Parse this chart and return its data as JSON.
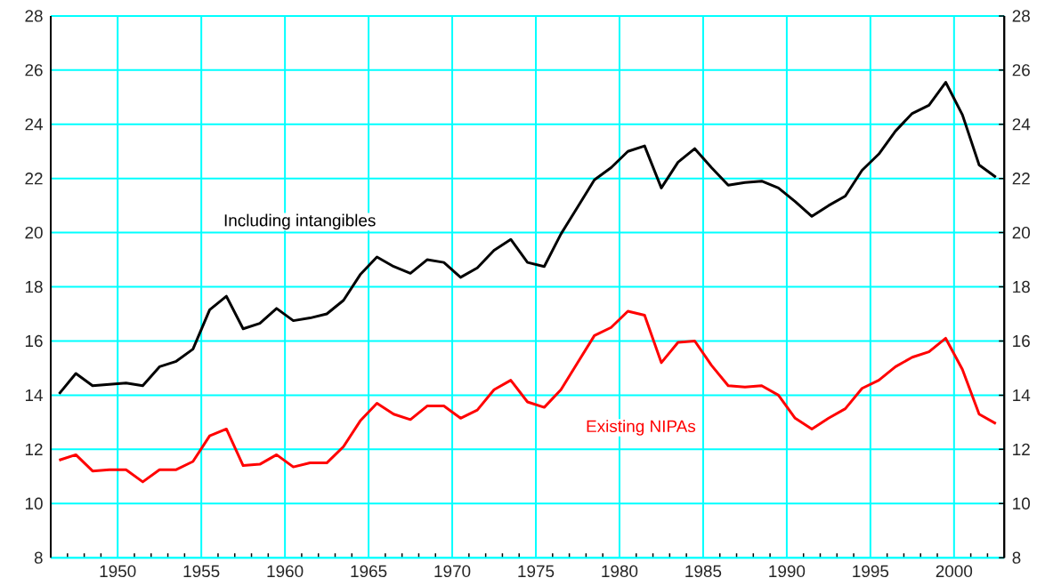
{
  "chart_data": {
    "type": "line",
    "x": [
      1946.5,
      1947.5,
      1948.5,
      1949.5,
      1950.5,
      1951.5,
      1952.5,
      1953.5,
      1954.5,
      1955.5,
      1956.5,
      1957.5,
      1958.5,
      1959.5,
      1960.5,
      1961.5,
      1962.5,
      1963.5,
      1964.5,
      1965.5,
      1966.5,
      1967.5,
      1968.5,
      1969.5,
      1970.5,
      1971.5,
      1972.5,
      1973.5,
      1974.5,
      1975.5,
      1976.5,
      1977.5,
      1978.5,
      1979.5,
      1980.5,
      1981.5,
      1982.5,
      1983.5,
      1984.5,
      1985.5,
      1986.5,
      1987.5,
      1988.5,
      1989.5,
      1990.5,
      1991.5,
      1992.5,
      1993.5,
      1994.5,
      1995.5,
      1996.5,
      1997.5,
      1998.5,
      1999.5,
      2000.5,
      2001.5,
      2002.5
    ],
    "series": [
      {
        "name": "Including intangibles",
        "color": "#000000",
        "values": [
          14.05,
          14.8,
          14.35,
          14.4,
          14.45,
          14.35,
          15.05,
          15.25,
          15.7,
          17.15,
          17.65,
          16.45,
          16.65,
          17.2,
          16.75,
          16.85,
          17.0,
          17.5,
          18.45,
          19.1,
          18.75,
          18.5,
          19.0,
          18.9,
          18.35,
          18.7,
          19.35,
          19.75,
          18.9,
          18.75,
          19.95,
          20.95,
          21.95,
          22.4,
          23.0,
          23.2,
          21.65,
          22.6,
          23.1,
          22.4,
          21.75,
          21.85,
          21.9,
          21.65,
          21.15,
          20.6,
          21.0,
          21.35,
          22.3,
          22.9,
          23.75,
          24.4,
          24.7,
          25.55,
          24.35,
          22.5,
          22.05
        ]
      },
      {
        "name": "Existing NIPAs",
        "color": "#ff0000",
        "values": [
          11.6,
          11.8,
          11.2,
          11.25,
          11.25,
          10.8,
          11.25,
          11.25,
          11.55,
          12.5,
          12.75,
          11.4,
          11.45,
          11.8,
          11.35,
          11.5,
          11.5,
          12.1,
          13.05,
          13.7,
          13.3,
          13.1,
          13.6,
          13.6,
          13.15,
          13.45,
          14.2,
          14.55,
          13.75,
          13.55,
          14.2,
          15.2,
          16.2,
          16.5,
          17.1,
          16.95,
          15.2,
          15.95,
          16.0,
          15.1,
          14.35,
          14.3,
          14.35,
          14.0,
          13.15,
          12.75,
          13.15,
          13.5,
          14.25,
          14.55,
          15.05,
          15.4,
          15.6,
          16.1,
          14.95,
          13.3,
          12.95
        ]
      }
    ],
    "xlim": [
      1946,
      2003
    ],
    "xticks": [
      {
        "value": 1947,
        "label": null
      },
      {
        "value": 1948,
        "label": null
      },
      {
        "value": 1949,
        "label": null
      },
      1950,
      {
        "value": 1951,
        "label": null
      },
      {
        "value": 1952,
        "label": null
      },
      {
        "value": 1953,
        "label": null
      },
      {
        "value": 1954,
        "label": null
      },
      1955,
      {
        "value": 1956,
        "label": null
      },
      {
        "value": 1957,
        "label": null
      },
      {
        "value": 1958,
        "label": null
      },
      {
        "value": 1959,
        "label": null
      },
      1960,
      {
        "value": 1961,
        "label": null
      },
      {
        "value": 1962,
        "label": null
      },
      {
        "value": 1963,
        "label": null
      },
      {
        "value": 1964,
        "label": null
      },
      1965,
      {
        "value": 1966,
        "label": null
      },
      {
        "value": 1967,
        "label": null
      },
      {
        "value": 1968,
        "label": null
      },
      {
        "value": 1969,
        "label": null
      },
      1970,
      {
        "value": 1971,
        "label": null
      },
      {
        "value": 1972,
        "label": null
      },
      {
        "value": 1973,
        "label": null
      },
      {
        "value": 1974,
        "label": null
      },
      1975,
      {
        "value": 1976,
        "label": null
      },
      {
        "value": 1977,
        "label": null
      },
      {
        "value": 1978,
        "label": null
      },
      {
        "value": 1979,
        "label": null
      },
      1980,
      {
        "value": 1981,
        "label": null
      },
      {
        "value": 1982,
        "label": null
      },
      {
        "value": 1983,
        "label": null
      },
      {
        "value": 1984,
        "label": null
      },
      1985,
      {
        "value": 1986,
        "label": null
      },
      {
        "value": 1987,
        "label": null
      },
      {
        "value": 1988,
        "label": null
      },
      {
        "value": 1989,
        "label": null
      },
      1990,
      {
        "value": 1991,
        "label": null
      },
      {
        "value": 1992,
        "label": null
      },
      {
        "value": 1993,
        "label": null
      },
      {
        "value": 1994,
        "label": null
      },
      1995,
      {
        "value": 1996,
        "label": null
      },
      {
        "value": 1997,
        "label": null
      },
      {
        "value": 1998,
        "label": null
      },
      {
        "value": 1999,
        "label": null
      },
      2000,
      {
        "value": 2001,
        "label": null
      },
      {
        "value": 2002,
        "label": null
      }
    ],
    "ylim": [
      8,
      28
    ],
    "yticks": [
      8,
      10,
      12,
      14,
      16,
      18,
      20,
      22,
      24,
      26,
      28
    ],
    "y2lim": [
      8,
      28
    ],
    "y2ticks": [
      8,
      10,
      12,
      14,
      16,
      18,
      20,
      22,
      24,
      26,
      28
    ],
    "grid": true,
    "line_style": "solid",
    "marker": "none"
  }
}
